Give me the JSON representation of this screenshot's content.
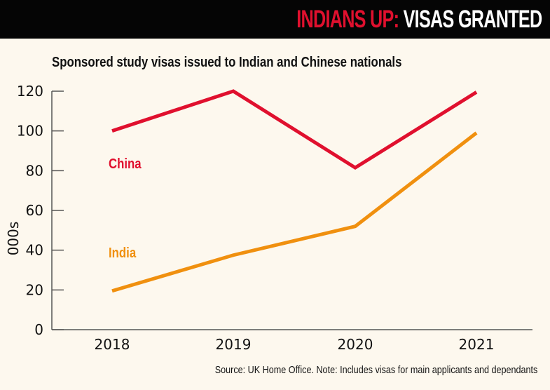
{
  "header": {
    "title_highlight": "INDIANS UP:",
    "title_rest": "VISAS GRANTED"
  },
  "chart_data": {
    "type": "line",
    "title": "Sponsored study visas issued to Indian and Chinese nationals",
    "xlabel": "",
    "ylabel": "000s",
    "categories": [
      "2018",
      "2019",
      "2020",
      "2021"
    ],
    "ylim": [
      0,
      120
    ],
    "yticks": [
      "0",
      "20",
      "40",
      "60",
      "80",
      "100",
      "120"
    ],
    "grid": false,
    "series": [
      {
        "name": "China",
        "color": "#e0102e",
        "values": [
          100,
          120,
          81.5,
          119.5
        ]
      },
      {
        "name": "India",
        "color": "#f0900f",
        "values": [
          19.5,
          37.5,
          52,
          99
        ]
      }
    ],
    "source": "Source: UK Home Office. Note: Includes visas for main applicants and dependants"
  },
  "colors": {
    "background": "#fdf8ee",
    "header_bg": "#050505"
  }
}
